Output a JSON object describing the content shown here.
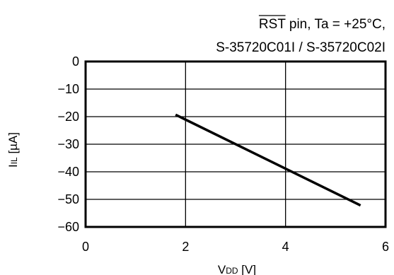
{
  "chart_data": {
    "type": "line",
    "title": {
      "signal": "RST",
      "line1_rest": " pin, Ta = +25°C,",
      "line2": "S-35720C01I / S-35720C02I"
    },
    "xlabel": {
      "main": "V",
      "sub": "DD",
      "unit": " [V]"
    },
    "ylabel": {
      "main": "I",
      "sub": "IL",
      "unit": " [µA]"
    },
    "xlim": [
      0,
      6
    ],
    "ylim": [
      -60,
      0
    ],
    "x_ticks": [
      0,
      2,
      4,
      6
    ],
    "x_tick_labels": [
      "0",
      "2",
      "4",
      "6"
    ],
    "y_ticks": [
      0,
      -10,
      -20,
      -30,
      -40,
      -50,
      -60
    ],
    "y_tick_labels": [
      "0",
      "−10",
      "−20",
      "−30",
      "−40",
      "−50",
      "−60"
    ],
    "grid": true,
    "series": [
      {
        "x": [
          1.8,
          5.5
        ],
        "y": [
          -19.3,
          -52.2
        ]
      }
    ]
  }
}
